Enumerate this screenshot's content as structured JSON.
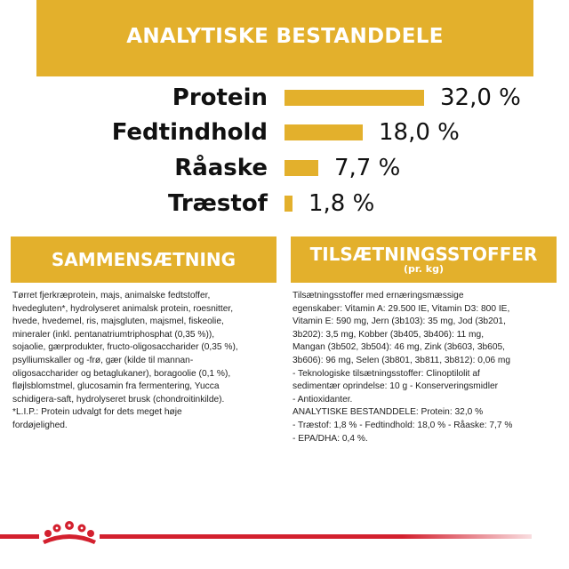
{
  "analytical": {
    "title": "ANALYTISKE BESTANDDELE",
    "rows": [
      {
        "label": "Protein",
        "value": "32,0 %",
        "percent": 32.0
      },
      {
        "label": "Fedtindhold",
        "value": "18,0 %",
        "percent": 18.0
      },
      {
        "label": "Råaske",
        "value": "7,7 %",
        "percent": 7.7
      },
      {
        "label": "Træstof",
        "value": "1,8 %",
        "percent": 1.8
      }
    ]
  },
  "composition": {
    "title": "SAMMENSÆTNING",
    "lines": [
      "Tørret fjerkræprotein, majs, animalske fedtstoffer,",
      "hvedegluten*, hydrolyseret animalsk protein, roesnitter,",
      "hvede, hvedemel, ris, majsgluten, majsmel, fiskeolie,",
      "mineraler (inkl. pentanatriumtriphosphat (0,35 %)),",
      "sojaolie, gærprodukter, fructo-oligosaccharider (0,35 %),",
      "psylliumskaller og -frø, gær (kilde til mannan-",
      "oligosaccharider og betaglukaner), boragoolie (0,1 %),",
      "fløjlsblomstmel, glucosamin fra fermentering, Yucca",
      "schidigera-saft, hydrolyseret brusk (chondroitinkilde).",
      "*L.I.P.: Protein udvalgt for dets meget høje",
      "fordøjelighed."
    ]
  },
  "additives": {
    "title": "TILSÆTNINGSSTOFFER",
    "subtitle": "(pr. kg)",
    "lines": [
      "Tilsætningsstoffer med ernæringsmæssige",
      "egenskaber: Vitamin A: 29.500 IE, Vitamin D3: 800 IE,",
      "Vitamin E: 590 mg, Jern (3b103): 35 mg, Jod (3b201,",
      "3b202): 3,5 mg, Kobber (3b405, 3b406): 11 mg,",
      "Mangan (3b502, 3b504): 46 mg, Zink (3b603, 3b605,",
      "3b606): 96 mg, Selen (3b801, 3b811, 3b812): 0,06 mg",
      "- Teknologiske tilsætningsstoffer: Clinoptilolit af",
      "sedimentær oprindelse: 10 g - Konserveringsmidler",
      "- Antioxidanter.",
      "ANALYTISKE BESTANDDELE: Protein: 32,0 %",
      "- Træstof: 1,8 % - Fedtindhold: 18,0 % - Råaske: 7,7 %",
      "- EPA/DHA: 0,4 %."
    ]
  },
  "colors": {
    "accent": "#e3b02c",
    "brand_red": "#d3202e"
  },
  "footer": {
    "logo_icon": "crown-icon"
  }
}
